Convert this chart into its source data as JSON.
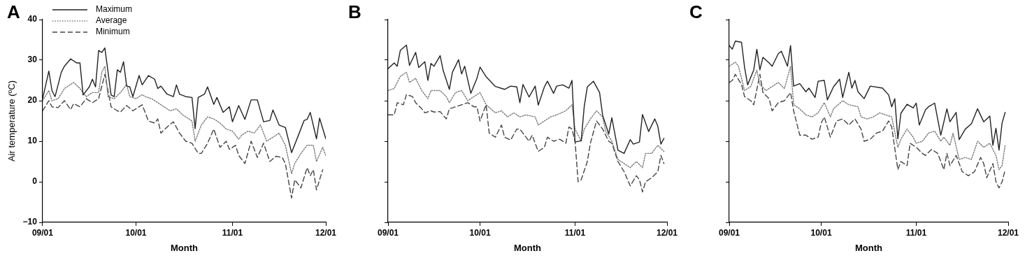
{
  "chart_data": [
    {
      "type": "line",
      "title": "A",
      "xlabel": "Month",
      "ylabel": "Air temperature (ºC)",
      "legend": "top left",
      "grid": false,
      "xlim": [
        "--09-01",
        "--12-01"
      ],
      "ylim": [
        -10,
        40
      ],
      "xticks": [
        {
          "value": "--09-01",
          "label": "09/01"
        },
        {
          "value": "--10-01",
          "label": "10/01"
        },
        {
          "value": "--11-01",
          "label": "11/01"
        },
        {
          "value": "--12-01",
          "label": "12/01"
        }
      ],
      "yticks": [
        -10,
        0,
        10,
        20,
        30,
        40
      ],
      "series": [
        {
          "name": "Maximum",
          "color": "#222222",
          "line_style": "solid",
          "x": [
            "--09-01",
            "--09-03",
            "--09-04",
            "--09-05",
            "--09-07",
            "--09-08",
            "--09-10",
            "--09-12",
            "--09-13",
            "--09-14",
            "--09-16",
            "--09-17",
            "--09-18",
            "--09-19",
            "--09-20",
            "--09-21",
            "--09-23",
            "--09-24",
            "--09-25",
            "--09-26",
            "--09-27",
            "--09-28",
            "--09-29",
            "--09-30",
            "--10-02",
            "--10-03",
            "--10-05",
            "--10-07",
            "--10-08",
            "--10-09",
            "--10-11",
            "--10-13",
            "--10-14",
            "--10-15",
            "--10-17",
            "--10-19",
            "--10-20",
            "--10-21",
            "--10-23",
            "--10-24",
            "--10-26",
            "--10-27",
            "--10-29",
            "--10-31",
            "--11-01",
            "--11-03",
            "--11-05",
            "--11-07",
            "--11-09",
            "--11-11",
            "--11-13",
            "--11-14",
            "--11-16",
            "--11-18",
            "--11-20",
            "--11-22",
            "--11-24",
            "--11-25",
            "--11-26",
            "--11-28",
            "--11-29",
            "--12-01"
          ],
          "values": [
            20.5,
            27.3,
            22.5,
            21,
            27,
            28.5,
            30.3,
            29.3,
            29.3,
            21.4,
            23.4,
            25.3,
            23.4,
            32.4,
            31.9,
            33,
            21.4,
            21,
            27.6,
            27,
            29.6,
            23.6,
            23.4,
            21,
            26.2,
            23.9,
            26.2,
            25.3,
            23,
            23.6,
            21.6,
            21,
            23.9,
            21.6,
            21,
            20.8,
            13.1,
            20.8,
            21.6,
            23.4,
            19.1,
            20.8,
            17.1,
            18.5,
            14.8,
            18.8,
            15.4,
            20.2,
            20.2,
            14.8,
            15.1,
            17.7,
            14,
            13.4,
            7.2,
            11.1,
            15.1,
            15.4,
            17.1,
            10.6,
            15.7,
            10.6
          ]
        },
        {
          "name": "Average",
          "color": "#777777",
          "line_style": "dotted",
          "x": [
            "--09-01",
            "--09-03",
            "--09-04",
            "--09-06",
            "--09-08",
            "--09-11",
            "--09-13",
            "--09-15",
            "--09-17",
            "--09-19",
            "--09-20",
            "--09-21",
            "--09-22",
            "--09-24",
            "--09-26",
            "--09-28",
            "--09-29",
            "--10-01",
            "--10-03",
            "--10-04",
            "--10-06",
            "--10-08",
            "--10-10",
            "--10-12",
            "--10-14",
            "--10-16",
            "--10-19",
            "--10-20",
            "--10-22",
            "--10-24",
            "--10-26",
            "--10-28",
            "--10-30",
            "--11-01",
            "--11-03",
            "--11-04",
            "--11-06",
            "--11-08",
            "--11-10",
            "--11-12",
            "--11-14",
            "--11-16",
            "--11-18",
            "--11-20",
            "--11-21",
            "--11-23",
            "--11-25",
            "--11-27",
            "--11-28",
            "--11-30",
            "--12-01"
          ],
          "values": [
            20,
            22.5,
            20,
            20.5,
            23,
            24.5,
            23,
            21,
            22,
            22,
            27,
            28.5,
            21,
            20.5,
            22,
            24,
            21,
            20.5,
            21.5,
            21,
            20.5,
            19.5,
            18.5,
            17.5,
            18,
            16.5,
            15,
            10,
            14,
            16,
            15.5,
            14.5,
            13,
            12.5,
            10.5,
            11.5,
            12.5,
            12,
            14,
            10,
            11,
            12,
            9,
            2,
            4.5,
            7,
            9,
            9,
            5,
            8.5,
            6.5
          ]
        },
        {
          "name": "Minimum",
          "color": "#444444",
          "line_style": "dashed",
          "x": [
            "--09-01",
            "--09-03",
            "--09-04",
            "--09-06",
            "--09-08",
            "--09-10",
            "--09-11",
            "--09-13",
            "--09-15",
            "--09-17",
            "--09-19",
            "--09-21",
            "--09-23",
            "--09-25",
            "--09-26",
            "--09-28",
            "--09-30",
            "--10-02",
            "--10-03",
            "--10-05",
            "--10-07",
            "--10-08",
            "--10-09",
            "--10-11",
            "--10-13",
            "--10-15",
            "--10-17",
            "--10-19",
            "--10-21",
            "--10-22",
            "--10-24",
            "--10-26",
            "--10-28",
            "--10-30",
            "--10-31",
            "--11-02",
            "--11-03",
            "--11-05",
            "--11-07",
            "--11-09",
            "--11-11",
            "--11-13",
            "--11-15",
            "--11-17",
            "--11-18",
            "--11-20",
            "--11-21",
            "--11-23",
            "--11-25",
            "--11-26",
            "--11-27",
            "--11-28",
            "--11-30"
          ],
          "values": [
            17.5,
            20,
            18.5,
            18.3,
            20,
            17.8,
            19.3,
            18.5,
            20.5,
            19.5,
            20.5,
            26.5,
            18.5,
            17.5,
            17.2,
            18.8,
            17.5,
            18.5,
            19,
            15,
            14.5,
            15.5,
            12,
            13.5,
            14.8,
            12,
            10,
            9.5,
            7,
            7,
            9.5,
            13,
            8.5,
            10,
            8,
            9,
            6.5,
            4.5,
            10,
            6,
            9.5,
            5,
            6.3,
            6,
            4.5,
            -4,
            0.5,
            -1.5,
            3.5,
            1.5,
            3,
            -2,
            3
          ]
        }
      ]
    },
    {
      "type": "line",
      "title": "B",
      "xlabel": "Month",
      "tick_labels": "x",
      "grid": false,
      "xlim": [
        "--09-01",
        "--12-01"
      ],
      "ylim": [
        -10,
        40
      ],
      "xticks": [
        {
          "value": "--09-01",
          "label": "09/01"
        },
        {
          "value": "--10-01",
          "label": "10/01"
        },
        {
          "value": "--11-01",
          "label": "11/01"
        },
        {
          "value": "--12-01",
          "label": "12/01"
        }
      ],
      "yticks": [
        -10,
        0,
        10,
        20,
        30,
        40
      ],
      "series": [
        {
          "color": "#222222",
          "line_style": "solid",
          "x": [
            "--09-01",
            "--09-03",
            "--09-04",
            "--09-05",
            "--09-07",
            "--09-08",
            "--09-10",
            "--09-11",
            "--09-13",
            "--09-14",
            "--09-15",
            "--09-16",
            "--09-18",
            "--09-19",
            "--09-21",
            "--09-22",
            "--09-24",
            "--09-25",
            "--09-26",
            "--09-28",
            "--09-30",
            "--10-01",
            "--10-03",
            "--10-06",
            "--10-09",
            "--10-11",
            "--10-13",
            "--10-14",
            "--10-15",
            "--10-17",
            "--10-19",
            "--10-20",
            "--10-22",
            "--10-23",
            "--10-25",
            "--10-26",
            "--10-28",
            "--10-30",
            "--10-31",
            "--11-01",
            "--11-03",
            "--11-04",
            "--11-05",
            "--11-07",
            "--11-09",
            "--11-10",
            "--11-12",
            "--11-13",
            "--11-15",
            "--11-17",
            "--11-19",
            "--11-20",
            "--11-22",
            "--11-23",
            "--11-25",
            "--11-27",
            "--11-28",
            "--11-29",
            "--11-30"
          ],
          "values": [
            27.9,
            29.3,
            28.5,
            32.4,
            33.7,
            28.7,
            31.9,
            28.2,
            29.6,
            25,
            29.2,
            28.5,
            31.1,
            27.4,
            22.8,
            27,
            30.1,
            26.6,
            28.5,
            21.8,
            25.5,
            28.3,
            25.9,
            23.5,
            22.8,
            23.6,
            23.4,
            19.5,
            24,
            20.9,
            23.6,
            18.9,
            23.4,
            24.8,
            21.8,
            23.6,
            23.9,
            23.1,
            25,
            9.8,
            10.1,
            18.6,
            23.4,
            24.8,
            22,
            16.4,
            11.8,
            15.8,
            7.8,
            7,
            10.4,
            9.3,
            9.8,
            16.6,
            12.4,
            15.5,
            13.7,
            9.3,
            10.7
          ]
        },
        {
          "color": "#777777",
          "line_style": "dotted",
          "x": [
            "--09-01",
            "--09-03",
            "--09-05",
            "--09-07",
            "--09-08",
            "--09-10",
            "--09-12",
            "--09-14",
            "--09-15",
            "--09-18",
            "--09-20",
            "--09-21",
            "--09-23",
            "--09-25",
            "--09-27",
            "--09-29",
            "--10-01",
            "--10-03",
            "--10-06",
            "--10-08",
            "--10-10",
            "--10-12",
            "--10-14",
            "--10-16",
            "--10-19",
            "--10-20",
            "--10-22",
            "--10-24",
            "--10-26",
            "--10-29",
            "--10-31",
            "--11-01",
            "--11-03",
            "--11-04",
            "--11-06",
            "--11-08",
            "--11-10",
            "--11-11",
            "--11-13",
            "--11-15",
            "--11-17",
            "--11-19",
            "--11-21",
            "--11-23",
            "--11-24",
            "--11-26",
            "--11-28",
            "--11-30"
          ],
          "values": [
            22.5,
            23,
            26,
            27,
            24.5,
            25.5,
            22.5,
            20.5,
            22.5,
            22.5,
            21,
            19.5,
            22,
            22.5,
            20,
            21,
            22,
            19,
            17,
            17.5,
            16,
            17,
            16,
            16.5,
            16,
            14,
            15,
            16,
            16.5,
            17.5,
            19,
            13,
            10,
            13,
            15.5,
            17.5,
            16,
            12.5,
            10,
            5.5,
            4.5,
            3.5,
            5,
            3.5,
            7,
            7,
            9,
            7.5
          ]
        },
        {
          "color": "#444444",
          "line_style": "dashed",
          "x": [
            "--09-01",
            "--09-03",
            "--09-04",
            "--09-06",
            "--09-07",
            "--09-09",
            "--09-10",
            "--09-12",
            "--09-13",
            "--09-15",
            "--09-16",
            "--09-18",
            "--09-20",
            "--09-21",
            "--09-23",
            "--09-25",
            "--09-27",
            "--09-29",
            "--09-30",
            "--10-01",
            "--10-03",
            "--10-04",
            "--10-06",
            "--10-08",
            "--10-09",
            "--10-11",
            "--10-13",
            "--10-14",
            "--10-15",
            "--10-17",
            "--10-18",
            "--10-20",
            "--10-22",
            "--10-23",
            "--10-25",
            "--10-27",
            "--10-29",
            "--10-30",
            "--10-31",
            "--11-01",
            "--11-02",
            "--11-03",
            "--11-05",
            "--11-06",
            "--11-08",
            "--11-10",
            "--11-12",
            "--11-13",
            "--11-15",
            "--11-17",
            "--11-19",
            "--11-21",
            "--11-22",
            "--11-23",
            "--11-24",
            "--11-26",
            "--11-28",
            "--11-29",
            "--11-30"
          ],
          "values": [
            16.5,
            16.5,
            19.5,
            19,
            21.5,
            21,
            19.5,
            18,
            17,
            17.5,
            17.2,
            17.3,
            15.5,
            18,
            18.5,
            19,
            19.5,
            18.5,
            18.5,
            15,
            19,
            12,
            11,
            14,
            11,
            10.3,
            13,
            13,
            12,
            10,
            11.5,
            7.5,
            8.5,
            11,
            10,
            10.5,
            9.5,
            13.5,
            13,
            10,
            0,
            0.5,
            5,
            9.5,
            15,
            13,
            10,
            9.5,
            5,
            2.5,
            -1,
            1.5,
            0.5,
            -2.5,
            0,
            1,
            2.5,
            6.5,
            4.5
          ]
        }
      ]
    },
    {
      "type": "line",
      "title": "C",
      "xlabel": "Month",
      "tick_labels": "x",
      "grid": false,
      "xlim": [
        "--09-01",
        "--12-01"
      ],
      "ylim": [
        -10,
        40
      ],
      "xticks": [
        {
          "value": "--09-01",
          "label": "09/01"
        },
        {
          "value": "--10-01",
          "label": "10/01"
        },
        {
          "value": "--11-01",
          "label": "11/01"
        },
        {
          "value": "--12-01",
          "label": "12/01"
        }
      ],
      "yticks": [
        -10,
        0,
        10,
        20,
        30,
        40
      ],
      "series": [
        {
          "color": "#222222",
          "line_style": "solid",
          "x": [
            "--09-01",
            "--09-02",
            "--09-03",
            "--09-05",
            "--09-06",
            "--09-07",
            "--09-09",
            "--09-10",
            "--09-11",
            "--09-12",
            "--09-14",
            "--09-15",
            "--09-17",
            "--09-18",
            "--09-20",
            "--09-21",
            "--09-22",
            "--09-24",
            "--09-26",
            "--09-27",
            "--09-29",
            "--09-30",
            "--10-02",
            "--10-03",
            "--10-05",
            "--10-07",
            "--10-08",
            "--10-10",
            "--10-11",
            "--10-12",
            "--10-13",
            "--10-15",
            "--10-17",
            "--10-21",
            "--10-23",
            "--10-24",
            "--10-25",
            "--10-26",
            "--10-27",
            "--10-29",
            "--10-31",
            "--11-01",
            "--11-02",
            "--11-04",
            "--11-05",
            "--11-07",
            "--11-09",
            "--11-11",
            "--11-12",
            "--11-14",
            "--11-15",
            "--11-17",
            "--11-19",
            "--11-21",
            "--11-23",
            "--11-25",
            "--11-26",
            "--11-27",
            "--11-28",
            "--11-29",
            "--11-30"
          ],
          "values": [
            33.6,
            32.7,
            34.7,
            34.4,
            28.2,
            23.9,
            27.6,
            32.7,
            27.6,
            30.7,
            29.3,
            28.5,
            31.6,
            32.2,
            28.5,
            33.6,
            23.6,
            24.2,
            22.2,
            23.1,
            20.8,
            24.8,
            25,
            20.2,
            23.4,
            25.3,
            20.8,
            27,
            23.1,
            25,
            22.2,
            20.5,
            23.6,
            23.1,
            21.4,
            18.5,
            20.5,
            10.6,
            16.9,
            19.1,
            18.2,
            19.4,
            14,
            17.7,
            18.5,
            19.4,
            11.5,
            18,
            14.8,
            17.1,
            10.4,
            13,
            14.3,
            18,
            14.8,
            16.2,
            9,
            13.2,
            7.8,
            14.5,
            17.1
          ]
        },
        {
          "color": "#777777",
          "line_style": "dotted",
          "x": [
            "--09-01",
            "--09-03",
            "--09-04",
            "--09-06",
            "--09-08",
            "--09-10",
            "--09-11",
            "--09-13",
            "--09-15",
            "--09-17",
            "--09-19",
            "--09-21",
            "--09-22",
            "--09-24",
            "--09-26",
            "--09-28",
            "--09-30",
            "--10-02",
            "--10-04",
            "--10-05",
            "--10-08",
            "--10-10",
            "--10-13",
            "--10-14",
            "--10-16",
            "--10-18",
            "--10-20",
            "--10-22",
            "--10-24",
            "--10-26",
            "--10-27",
            "--10-29",
            "--10-31",
            "--11-01",
            "--11-03",
            "--11-05",
            "--11-07",
            "--11-09",
            "--11-10",
            "--11-12",
            "--11-13",
            "--11-15",
            "--11-17",
            "--11-19",
            "--11-21",
            "--11-23",
            "--11-25",
            "--11-27",
            "--11-28",
            "--11-29",
            "--11-30"
          ],
          "values": [
            28.5,
            29.5,
            28.5,
            22.5,
            23.5,
            27.5,
            24,
            22.5,
            23.5,
            24.5,
            23,
            28.5,
            19,
            18,
            16.5,
            16,
            17,
            19.5,
            16,
            18,
            20,
            19,
            18.5,
            16,
            15.5,
            16,
            17,
            16.5,
            16,
            8.5,
            10.5,
            13,
            11,
            9.5,
            10,
            12,
            12.5,
            10,
            11,
            9,
            12,
            5.5,
            6,
            5.5,
            10,
            8.5,
            9.5,
            6.5,
            3,
            4,
            9
          ]
        },
        {
          "color": "#444444",
          "line_style": "dashed",
          "x": [
            "--09-01",
            "--09-02",
            "--09-03",
            "--09-05",
            "--09-06",
            "--09-08",
            "--09-09",
            "--09-11",
            "--09-12",
            "--09-14",
            "--09-15",
            "--09-17",
            "--09-19",
            "--09-21",
            "--09-22",
            "--09-24",
            "--09-26",
            "--09-28",
            "--09-30",
            "--10-01",
            "--10-02",
            "--10-04",
            "--10-06",
            "--10-08",
            "--10-10",
            "--10-12",
            "--10-14",
            "--10-15",
            "--10-17",
            "--10-19",
            "--10-21",
            "--10-23",
            "--10-24",
            "--10-26",
            "--10-27",
            "--10-29",
            "--10-30",
            "--11-01",
            "--11-03",
            "--11-04",
            "--11-06",
            "--11-08",
            "--11-10",
            "--11-11",
            "--11-12",
            "--11-14",
            "--11-16",
            "--11-18",
            "--11-20",
            "--11-22",
            "--11-23",
            "--11-24",
            "--11-26",
            "--11-27",
            "--11-28",
            "--11-29",
            "--11-30"
          ],
          "values": [
            24.5,
            25,
            26.5,
            24,
            21,
            20,
            19,
            26.5,
            22,
            20.5,
            17.5,
            19.5,
            20,
            22,
            17.5,
            11.5,
            11.5,
            10.5,
            11,
            14.5,
            16,
            11,
            15,
            15.5,
            14,
            15.5,
            13,
            10,
            10.5,
            12,
            12.5,
            15,
            13.5,
            3,
            5,
            4,
            9.5,
            8.5,
            7,
            6.5,
            8,
            7,
            3,
            7,
            4,
            6.5,
            2.5,
            1.5,
            2.5,
            6,
            4.5,
            1,
            4.5,
            0,
            -1.5,
            0,
            3
          ]
        }
      ]
    }
  ]
}
